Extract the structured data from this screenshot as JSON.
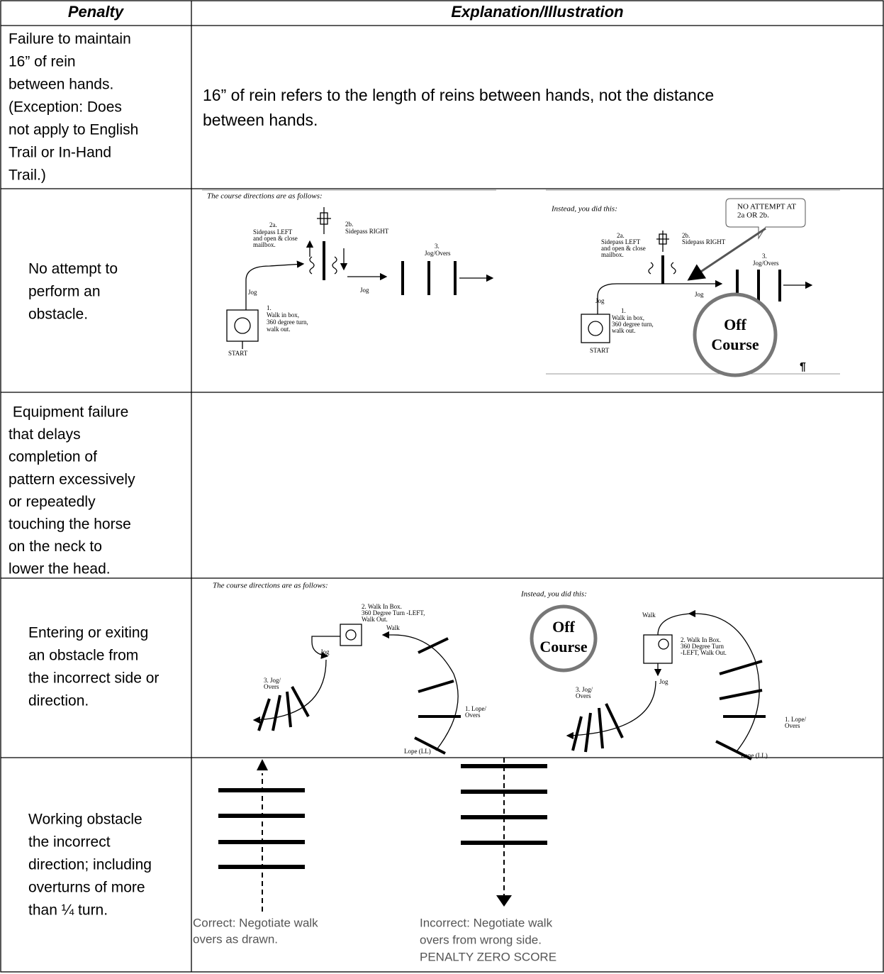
{
  "header": {
    "penalty": "Penalty",
    "explanation": "Explanation/Illustration"
  },
  "rows": [
    {
      "penalty": [
        "Failure to maintain",
        "16” of rein",
        "between hands.",
        "(Exception: Does",
        "not apply to English",
        "Trail or In-Hand",
        "Trail.)"
      ],
      "explanation": [
        "16” of rein refers to the length of reins between hands, not the distance",
        "between hands."
      ]
    },
    {
      "penalty": [
        "No attempt to",
        "perform an",
        "obstacle."
      ],
      "left": {
        "caption": "The course directions are as follows:",
        "labels": [
          "2a.",
          "Sidepass LEFT",
          "and open & close",
          "mailbox.",
          "2b.",
          "Sidepass RIGHT",
          "3.",
          "Jog/Overs",
          "Jog",
          "Jog",
          "1.",
          "Walk in box,",
          "360 degree turn,",
          "walk out.",
          "START"
        ]
      },
      "right": {
        "caption": "Instead, you did this:",
        "callout": [
          "NO ATTEMPT AT",
          "2a OR 2b."
        ],
        "labels": [
          "2a.",
          "Sidepass LEFT",
          "and open & close",
          "mailbox.",
          "2b.",
          "Sidepass RIGHT",
          "3.",
          "Jog/Overs",
          "Jog",
          "Jog",
          "1.",
          "Walk in box,",
          "360 degree turn,",
          "walk out.",
          "START"
        ],
        "off_course": [
          "Off",
          "Course"
        ],
        "mark": "¶"
      }
    },
    {
      "penalty": [
        " Equipment failure",
        "that delays",
        "completion of",
        "pattern excessively",
        "or repeatedly",
        "touching the horse",
        "on the neck to",
        "lower the head."
      ]
    },
    {
      "penalty": [
        "Entering or exiting",
        "an obstacle from",
        "the incorrect side or",
        "direction."
      ],
      "left": {
        "caption": "The course directions are as follows:",
        "labels": [
          "2. Walk In Box.",
          "360 Degree Turn -LEFT,",
          "Walk Out.",
          "Walk",
          "Jog",
          "3. Jog/",
          "Overs",
          "1. Lope/",
          "Overs",
          "Lope (LL)"
        ]
      },
      "right": {
        "caption": "Instead, you did this:",
        "off_course": [
          "Off",
          "Course"
        ],
        "labels": [
          "Walk",
          "2. Walk In Box.",
          "360 Degree Turn",
          "-LEFT, Walk Out.",
          "Jog",
          "3. Jog/",
          "Overs",
          "1. Lope/",
          "Overs",
          "Lope (LL)"
        ]
      }
    },
    {
      "penalty": [
        "Working obstacle",
        "the incorrect",
        "direction; including",
        "overturns of more",
        "than ¼ turn."
      ],
      "correct": [
        "Correct:  Negotiate walk",
        "overs as drawn."
      ],
      "incorrect": [
        "Incorrect:  Negotiate walk",
        "overs from wrong side.",
        "PENALTY ZERO SCORE"
      ]
    }
  ]
}
